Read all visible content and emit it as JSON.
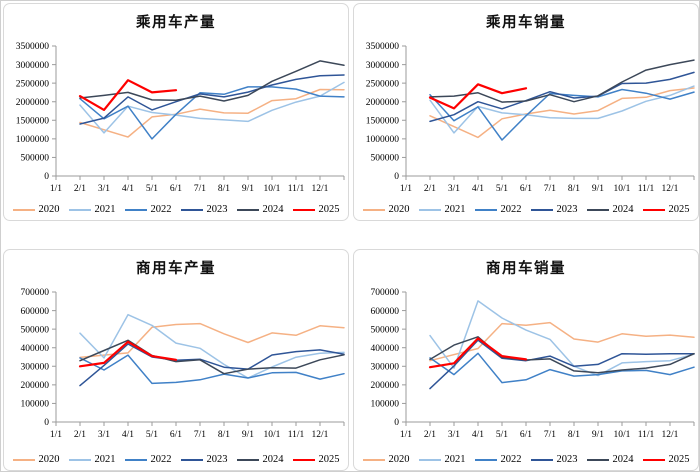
{
  "page": {
    "background": "#ffffff",
    "panel_border": "#d9d9d9",
    "axis_color": "#9b9b9b",
    "text_color": "#000000"
  },
  "chart_data": [
    {
      "id": "passenger-production",
      "type": "line",
      "title": "乘用车产量",
      "x_tick_labels": [
        "1/1",
        "2/1",
        "3/1",
        "4/1",
        "5/1",
        "6/1",
        "7/1",
        "8/1",
        "9/1",
        "10/1",
        "11/1",
        "12/1"
      ],
      "x_slots": 13,
      "x_start_slot": 1,
      "ylim": [
        0,
        3500000
      ],
      "ytick_step": 500000,
      "grid": false,
      "legend_position": "bottom",
      "series": [
        {
          "name": "2020",
          "color": "#F5B184",
          "values": [
            1440000,
            null,
            1050000,
            1590000,
            1660000,
            1800000,
            1700000,
            1690000,
            2030000,
            2080000,
            2330000,
            2320000
          ]
        },
        {
          "name": "2021",
          "color": "#9DC3E6",
          "values": [
            1910000,
            1160000,
            1880000,
            1710000,
            1640000,
            1550000,
            1510000,
            1470000,
            1770000,
            1990000,
            2150000,
            2520000
          ]
        },
        {
          "name": "2022",
          "color": "#4081C7",
          "values": [
            2080000,
            1540000,
            1880000,
            1000000,
            1660000,
            2240000,
            2200000,
            2400000,
            2400000,
            2340000,
            2150000,
            2130000
          ]
        },
        {
          "name": "2023",
          "color": "#2F5597",
          "values": [
            1400000,
            1560000,
            2130000,
            1780000,
            2000000,
            2210000,
            2130000,
            2260000,
            2450000,
            2600000,
            2700000,
            2720000
          ]
        },
        {
          "name": "2024",
          "color": "#3C4859",
          "values": [
            2100000,
            2170000,
            2250000,
            2050000,
            2040000,
            2150000,
            2020000,
            2170000,
            2550000,
            2820000,
            3100000,
            2980000
          ]
        },
        {
          "name": "2025",
          "color": "#FE0000",
          "values": [
            2150000,
            1780000,
            2580000,
            2250000,
            2310000
          ]
        }
      ]
    },
    {
      "id": "passenger-sales",
      "type": "line",
      "title": "乘用车销量",
      "x_tick_labels": [
        "1/1",
        "2/1",
        "3/1",
        "4/1",
        "5/1",
        "6/1",
        "7/1",
        "8/1",
        "9/1",
        "10/1",
        "11/1",
        "12/1"
      ],
      "x_slots": 13,
      "x_start_slot": 1,
      "ylim": [
        0,
        3500000
      ],
      "ytick_step": 500000,
      "grid": false,
      "legend_position": "bottom",
      "series": [
        {
          "name": "2020",
          "color": "#F5B184",
          "values": [
            1620000,
            null,
            1040000,
            1540000,
            1670000,
            1770000,
            1670000,
            1760000,
            2090000,
            2120000,
            2300000,
            2370000
          ]
        },
        {
          "name": "2021",
          "color": "#9DC3E6",
          "values": [
            2040000,
            1160000,
            1870000,
            1700000,
            1650000,
            1570000,
            1550000,
            1550000,
            1750000,
            2010000,
            2170000,
            2420000
          ]
        },
        {
          "name": "2022",
          "color": "#4081C7",
          "values": [
            2190000,
            1490000,
            1860000,
            970000,
            1620000,
            2220000,
            2170000,
            2130000,
            2330000,
            2230000,
            2070000,
            2260000
          ]
        },
        {
          "name": "2023",
          "color": "#2F5597",
          "values": [
            1470000,
            1650000,
            2000000,
            1810000,
            2030000,
            2270000,
            2100000,
            2150000,
            2490000,
            2500000,
            2600000,
            2790000
          ]
        },
        {
          "name": "2024",
          "color": "#3C4859",
          "values": [
            2130000,
            2150000,
            2240000,
            1990000,
            2020000,
            2190000,
            2000000,
            2160000,
            2530000,
            2850000,
            3000000,
            3120000
          ]
        },
        {
          "name": "2025",
          "color": "#FE0000",
          "values": [
            2110000,
            1820000,
            2470000,
            2230000,
            2360000
          ]
        }
      ]
    },
    {
      "id": "commercial-production",
      "type": "line",
      "title": "商用车产量",
      "x_tick_labels": [
        "1/1",
        "2/1",
        "3/1",
        "4/1",
        "5/1",
        "6/1",
        "7/1",
        "8/1",
        "9/1",
        "10/1",
        "11/1",
        "12/1"
      ],
      "x_slots": 13,
      "x_start_slot": 1,
      "ylim": [
        0,
        700000
      ],
      "ytick_step": 100000,
      "grid": false,
      "legend_position": "bottom",
      "series": [
        {
          "name": "2020",
          "color": "#F5B184",
          "values": [
            348000,
            null,
            372000,
            510000,
            525000,
            530000,
            475000,
            428000,
            480000,
            467000,
            518000,
            508000
          ]
        },
        {
          "name": "2021",
          "color": "#9DC3E6",
          "values": [
            478000,
            345000,
            578000,
            520000,
            425000,
            397000,
            310000,
            237000,
            296000,
            349000,
            370000,
            375000
          ]
        },
        {
          "name": "2022",
          "color": "#4081C7",
          "values": [
            345000,
            280000,
            360000,
            208000,
            213000,
            227000,
            258000,
            237000,
            265000,
            267000,
            231000,
            260000
          ]
        },
        {
          "name": "2023",
          "color": "#2F5597",
          "values": [
            196000,
            305000,
            420000,
            350000,
            332000,
            338000,
            295000,
            285000,
            361000,
            379000,
            388000,
            365000
          ]
        },
        {
          "name": "2024",
          "color": "#3C4859",
          "values": [
            330000,
            385000,
            440000,
            358000,
            325000,
            335000,
            260000,
            285000,
            292000,
            290000,
            335000,
            362000
          ]
        },
        {
          "name": "2025",
          "color": "#FE0000",
          "values": [
            300000,
            318000,
            432000,
            355000,
            335000
          ]
        }
      ]
    },
    {
      "id": "commercial-sales",
      "type": "line",
      "title": "商用车销量",
      "x_tick_labels": [
        "1/1",
        "2/1",
        "3/1",
        "4/1",
        "5/1",
        "6/1",
        "7/1",
        "8/1",
        "9/1",
        "10/1",
        "11/1",
        "12/1"
      ],
      "x_slots": 13,
      "x_start_slot": 1,
      "ylim": [
        0,
        700000
      ],
      "ytick_step": 100000,
      "grid": false,
      "legend_position": "bottom",
      "series": [
        {
          "name": "2020",
          "color": "#F5B184",
          "values": [
            330000,
            null,
            396000,
            530000,
            521000,
            535000,
            447000,
            430000,
            475000,
            462000,
            468000,
            456000
          ]
        },
        {
          "name": "2021",
          "color": "#9DC3E6",
          "values": [
            465000,
            290000,
            652000,
            560000,
            495000,
            445000,
            300000,
            250000,
            318000,
            325000,
            330000,
            365000
          ]
        },
        {
          "name": "2022",
          "color": "#4081C7",
          "values": [
            345000,
            255000,
            370000,
            212000,
            227000,
            282000,
            247000,
            255000,
            275000,
            278000,
            255000,
            295000
          ]
        },
        {
          "name": "2023",
          "color": "#2F5597",
          "values": [
            180000,
            302000,
            441000,
            343000,
            330000,
            355000,
            300000,
            310000,
            368000,
            365000,
            368000,
            368000
          ]
        },
        {
          "name": "2024",
          "color": "#3C4859",
          "values": [
            337000,
            414000,
            459000,
            348000,
            334000,
            340000,
            275000,
            265000,
            280000,
            290000,
            310000,
            368000
          ]
        },
        {
          "name": "2025",
          "color": "#FE0000",
          "values": [
            295000,
            316000,
            450000,
            355000,
            337000
          ]
        }
      ]
    }
  ]
}
